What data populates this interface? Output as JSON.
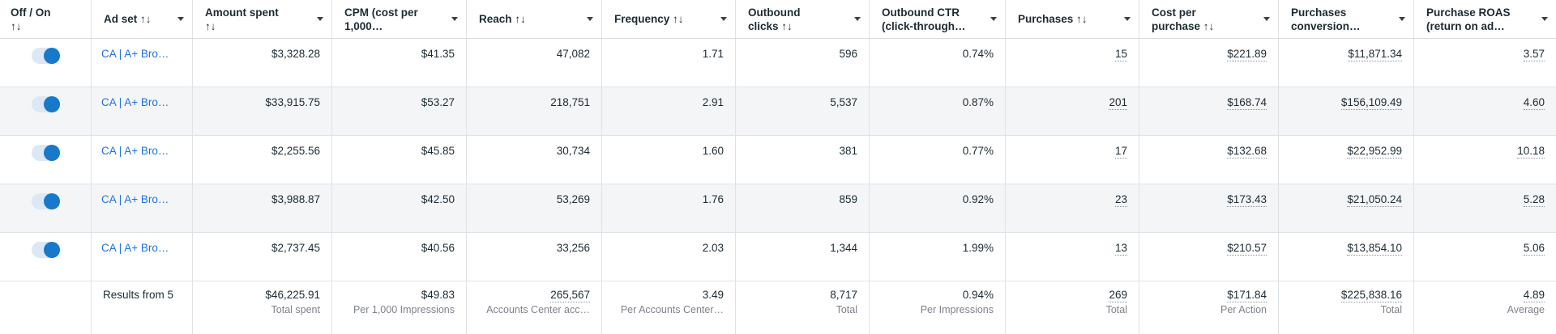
{
  "colors": {
    "link_blue": "#1b74e4",
    "toggle_track": "#dce8f5",
    "toggle_knob": "#1878c9",
    "alt_row_bg": "#f4f5f7",
    "header_text": "#1c2b33",
    "value_text": "#1c2b33",
    "footer_label": "#7e828a",
    "grid_border": "#e0e2e6",
    "estimate_dot": "#8c9096"
  },
  "header": {
    "columns": [
      {
        "lines": [
          "Off / On",
          "↑↓"
        ]
      },
      {
        "lines": [
          "Ad set ↑↓"
        ]
      },
      {
        "lines": [
          "Amount spent",
          "↑↓"
        ]
      },
      {
        "lines": [
          "CPM (cost per",
          "1,000…"
        ]
      },
      {
        "lines": [
          "Reach ↑↓"
        ]
      },
      {
        "lines": [
          "Frequency ↑↓"
        ]
      },
      {
        "lines": [
          "Outbound",
          "clicks ↑↓"
        ]
      },
      {
        "lines": [
          "Outbound CTR",
          "(click-through…"
        ]
      },
      {
        "lines": [
          "Purchases ↑↓"
        ]
      },
      {
        "lines": [
          "Cost per",
          "purchase ↑↓"
        ]
      },
      {
        "lines": [
          "Purchases",
          "conversion…"
        ]
      },
      {
        "lines": [
          "Purchase ROAS",
          "(return on ad…"
        ]
      }
    ]
  },
  "rows": [
    {
      "ad_set": "CA | A+ Bro…",
      "amount_spent": "$3,328.28",
      "cpm": "$41.35",
      "reach": "47,082",
      "frequency": "1.71",
      "outbound_clicks": "596",
      "outbound_ctr": "0.74%",
      "purchases": "15",
      "cost_per_purchase": "$221.89",
      "purchases_conversion": "$11,871.34",
      "purchase_roas": "3.57"
    },
    {
      "ad_set": "CA | A+ Bro…",
      "amount_spent": "$33,915.75",
      "cpm": "$53.27",
      "reach": "218,751",
      "frequency": "2.91",
      "outbound_clicks": "5,537",
      "outbound_ctr": "0.87%",
      "purchases": "201",
      "cost_per_purchase": "$168.74",
      "purchases_conversion": "$156,109.49",
      "purchase_roas": "4.60"
    },
    {
      "ad_set": "CA | A+ Bro…",
      "amount_spent": "$2,255.56",
      "cpm": "$45.85",
      "reach": "30,734",
      "frequency": "1.60",
      "outbound_clicks": "381",
      "outbound_ctr": "0.77%",
      "purchases": "17",
      "cost_per_purchase": "$132.68",
      "purchases_conversion": "$22,952.99",
      "purchase_roas": "10.18"
    },
    {
      "ad_set": "CA | A+ Bro…",
      "amount_spent": "$3,988.87",
      "cpm": "$42.50",
      "reach": "53,269",
      "frequency": "1.76",
      "outbound_clicks": "859",
      "outbound_ctr": "0.92%",
      "purchases": "23",
      "cost_per_purchase": "$173.43",
      "purchases_conversion": "$21,050.24",
      "purchase_roas": "5.28"
    },
    {
      "ad_set": "CA | A+ Bro…",
      "amount_spent": "$2,737.45",
      "cpm": "$40.56",
      "reach": "33,256",
      "frequency": "2.03",
      "outbound_clicks": "1,344",
      "outbound_ctr": "1.99%",
      "purchases": "13",
      "cost_per_purchase": "$210.57",
      "purchases_conversion": "$13,854.10",
      "purchase_roas": "5.06"
    }
  ],
  "footer": {
    "results_label": "Results from 5",
    "amount_spent": {
      "value": "$46,225.91",
      "label": "Total spent"
    },
    "cpm": {
      "value": "$49.83",
      "label": "Per 1,000 Impressions"
    },
    "reach": {
      "value": "265,567",
      "label": "Accounts Center acc…"
    },
    "frequency": {
      "value": "3.49",
      "label": "Per Accounts Center…"
    },
    "outbound_clicks": {
      "value": "8,717",
      "label": "Total"
    },
    "outbound_ctr": {
      "value": "0.94%",
      "label": "Per Impressions"
    },
    "purchases": {
      "value": "269",
      "label": "Total"
    },
    "cost_per_purchase": {
      "value": "$171.84",
      "label": "Per Action"
    },
    "purchases_conversion": {
      "value": "$225,838.16",
      "label": "Total"
    },
    "purchase_roas": {
      "value": "4.89",
      "label": "Average"
    }
  }
}
